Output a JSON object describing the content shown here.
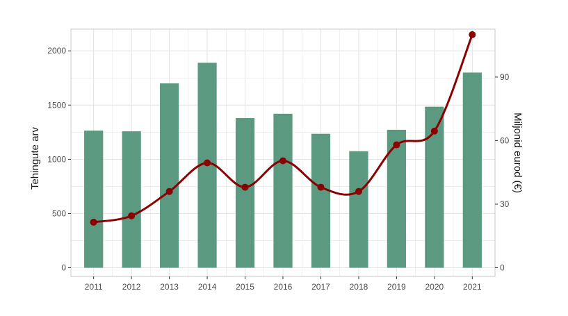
{
  "chart_data": {
    "type": "bar+line",
    "categories": [
      "2011",
      "2012",
      "2013",
      "2014",
      "2015",
      "2016",
      "2017",
      "2018",
      "2019",
      "2020",
      "2021"
    ],
    "series": [
      {
        "type": "bar",
        "axis": "left",
        "values": [
          1265,
          1258,
          1700,
          1890,
          1380,
          1420,
          1235,
          1075,
          1272,
          1485,
          1800
        ]
      },
      {
        "type": "line",
        "axis": "right",
        "values": [
          21.5,
          24.5,
          36.0,
          49.5,
          38.0,
          50.5,
          38.0,
          36.0,
          58.0,
          64.5,
          110.0
        ]
      }
    ],
    "ylabel": "Tehingute arv",
    "y2label": "Miljonid eurod (€)",
    "ylim": [
      -80,
      2200
    ],
    "y2lim": [
      -4.1,
      112.6
    ],
    "yticks": [
      0,
      500,
      1000,
      1500,
      2000
    ],
    "y2ticks": [
      0,
      30,
      60,
      90
    ],
    "grid": true,
    "colors": {
      "bar": "#5b9a80",
      "line": "#8b0000",
      "grid": "#e5e5e5",
      "panel_border": "#c8c8c8"
    }
  }
}
